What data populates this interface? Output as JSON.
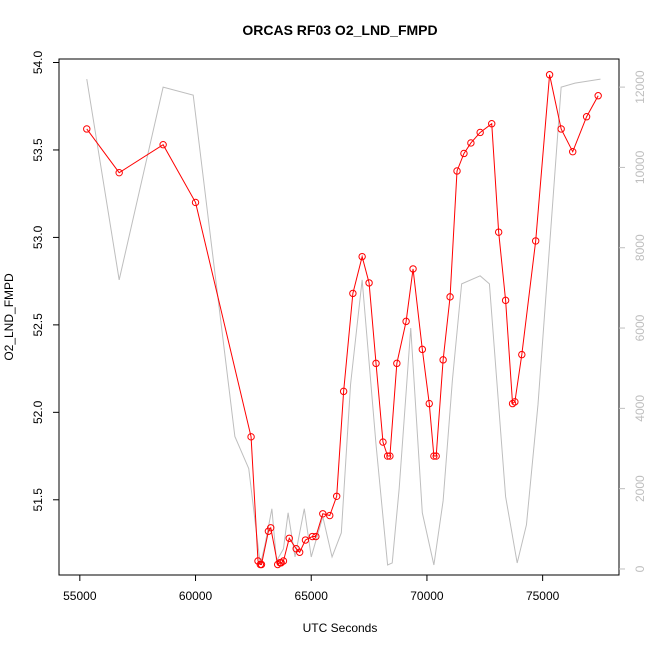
{
  "chart_data": {
    "type": "line",
    "title": "ORCAS RF03 O2_LND_FMPD",
    "xlabel": "UTC Seconds",
    "ylabel": "O2_LND_FMPD",
    "xlim": [
      54100,
      78300
    ],
    "ylim": [
      51.07,
      54.02
    ],
    "y2lim": [
      -150,
      12700
    ],
    "x_ticks": [
      55000,
      60000,
      65000,
      70000,
      75000
    ],
    "y_ticks": [
      51.5,
      52.0,
      52.5,
      53.0,
      53.5,
      54.0
    ],
    "y2_ticks": [
      0,
      2000,
      4000,
      6000,
      8000,
      10000,
      12000
    ],
    "colors": {
      "primary": "#ff0000",
      "secondary": "#bebebe",
      "axis": "#000000",
      "y2axis": "#bebebe"
    },
    "series": [
      {
        "role": "primary",
        "style": "line+points",
        "x": [
          55300,
          56700,
          58600,
          60000,
          62400,
          62700,
          62800,
          62850,
          63150,
          63250,
          63550,
          63650,
          63700,
          63800,
          64050,
          64350,
          64500,
          64750,
          65050,
          65200,
          65500,
          65800,
          66100,
          66400,
          66800,
          67200,
          67500,
          67800,
          68100,
          68300,
          68400,
          68700,
          69100,
          69400,
          69800,
          70100,
          70300,
          70400,
          70700,
          71000,
          71300,
          71600,
          71900,
          72300,
          72800,
          73100,
          73400,
          73700,
          73800,
          74100,
          74700,
          75300,
          75800,
          76300,
          76900,
          77400
        ],
        "y": [
          53.62,
          53.37,
          53.53,
          53.2,
          51.86,
          51.15,
          51.13,
          51.13,
          51.32,
          51.34,
          51.13,
          51.14,
          51.14,
          51.15,
          51.28,
          51.22,
          51.2,
          51.27,
          51.29,
          51.29,
          51.42,
          51.41,
          51.52,
          52.12,
          52.68,
          52.89,
          52.74,
          52.28,
          51.83,
          51.75,
          51.75,
          52.28,
          52.52,
          52.82,
          52.36,
          52.05,
          51.75,
          51.75,
          52.3,
          52.66,
          53.38,
          53.48,
          53.54,
          53.6,
          53.65,
          53.03,
          52.64,
          52.05,
          52.06,
          52.33,
          52.98,
          53.93,
          53.62,
          53.49,
          53.69,
          53.81
        ]
      },
      {
        "role": "secondary",
        "style": "line",
        "x": [
          55300,
          56700,
          58600,
          59900,
          61700,
          62300,
          62800,
          63000,
          63300,
          63500,
          63800,
          64000,
          64300,
          64700,
          65000,
          65500,
          65900,
          66300,
          66700,
          67200,
          67800,
          68300,
          68500,
          68800,
          69300,
          69800,
          70300,
          70700,
          71100,
          71500,
          72300,
          72700,
          73400,
          73900,
          74300,
          74800,
          75800,
          76400,
          77500
        ],
        "y": [
          12200,
          7200,
          12000,
          11800,
          3300,
          2500,
          100,
          600,
          1500,
          200,
          500,
          1400,
          300,
          1500,
          300,
          1300,
          300,
          900,
          4600,
          7200,
          3100,
          100,
          150,
          2000,
          6000,
          1400,
          100,
          1700,
          4700,
          7100,
          7300,
          7100,
          1800,
          150,
          1100,
          4100,
          12000,
          12100,
          12200
        ]
      }
    ]
  }
}
